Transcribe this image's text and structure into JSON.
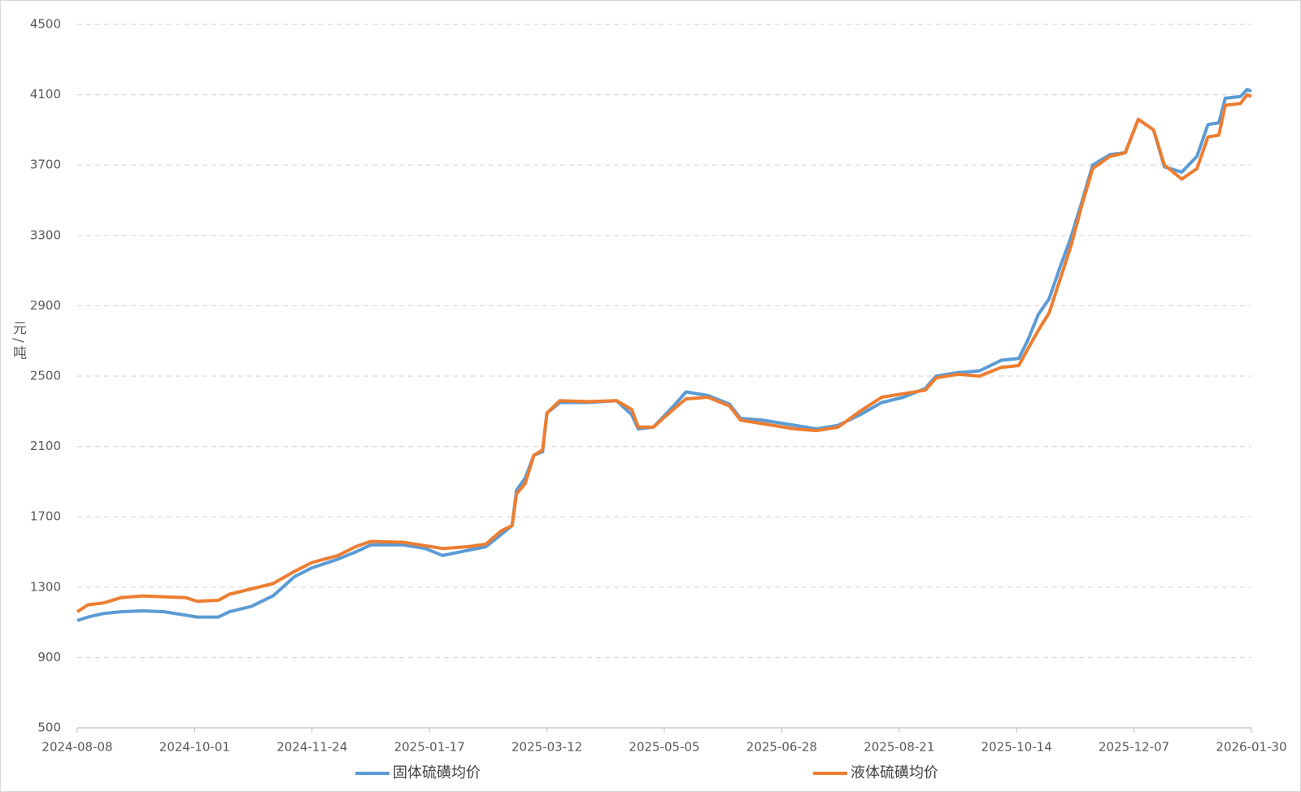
{
  "chart_data": {
    "type": "line",
    "y_label": "元/吨",
    "x": [
      "2024-08-08",
      "2024-08-13",
      "2024-08-20",
      "2024-08-28",
      "2024-09-07",
      "2024-09-17",
      "2024-09-27",
      "2024-10-02",
      "2024-10-12",
      "2024-10-17",
      "2024-10-27",
      "2024-11-06",
      "2024-11-16",
      "2024-11-24",
      "2024-12-06",
      "2024-12-14",
      "2024-12-21",
      "2025-01-05",
      "2025-01-15",
      "2025-01-23",
      "2025-02-04",
      "2025-02-12",
      "2025-02-19",
      "2025-02-24",
      "2025-02-26",
      "2025-03-02",
      "2025-03-06",
      "2025-03-10",
      "2025-03-12",
      "2025-03-18",
      "2025-03-31",
      "2025-04-13",
      "2025-04-20",
      "2025-04-23",
      "2025-04-30",
      "2025-05-10",
      "2025-05-15",
      "2025-05-25",
      "2025-06-04",
      "2025-06-09",
      "2025-06-19",
      "2025-07-04",
      "2025-07-14",
      "2025-07-24",
      "2025-08-03",
      "2025-08-13",
      "2025-08-23",
      "2025-09-02",
      "2025-09-07",
      "2025-09-17",
      "2025-09-27",
      "2025-10-07",
      "2025-10-15",
      "2025-10-19",
      "2025-10-24",
      "2025-10-29",
      "2025-11-03",
      "2025-11-08",
      "2025-11-13",
      "2025-11-18",
      "2025-11-26",
      "2025-12-03",
      "2025-12-09",
      "2025-12-16",
      "2025-12-21",
      "2025-12-29",
      "2026-01-05",
      "2026-01-10",
      "2026-01-15",
      "2026-01-18",
      "2026-01-25",
      "2026-01-28",
      "2026-01-30"
    ],
    "series": [
      {
        "name": "固体硫磺均价",
        "color": "#5b9bd5",
        "values": [
          1110,
          1130,
          1150,
          1160,
          1165,
          1160,
          1140,
          1130,
          1130,
          1160,
          1190,
          1250,
          1360,
          1410,
          1460,
          1500,
          1540,
          1540,
          1520,
          1480,
          1510,
          1530,
          1600,
          1650,
          1850,
          1920,
          2050,
          2070,
          2290,
          2350,
          2350,
          2360,
          2280,
          2200,
          2210,
          2340,
          2410,
          2390,
          2340,
          2260,
          2250,
          2220,
          2200,
          2220,
          2280,
          2350,
          2380,
          2430,
          2500,
          2520,
          2530,
          2590,
          2600,
          2700,
          2850,
          2940,
          3120,
          3290,
          3490,
          3700,
          3760,
          3770,
          3960,
          3900,
          3690,
          3660,
          3750,
          3930,
          3940,
          4080,
          4090,
          4130,
          4120
        ]
      },
      {
        "name": "液体硫磺均价",
        "color": "#ed7d31",
        "values": [
          1160,
          1200,
          1210,
          1240,
          1250,
          1245,
          1240,
          1220,
          1225,
          1260,
          1290,
          1320,
          1390,
          1440,
          1480,
          1530,
          1560,
          1555,
          1535,
          1520,
          1530,
          1545,
          1620,
          1650,
          1830,
          1890,
          2050,
          2080,
          2290,
          2360,
          2355,
          2360,
          2310,
          2210,
          2210,
          2320,
          2370,
          2380,
          2330,
          2250,
          2230,
          2200,
          2190,
          2210,
          2300,
          2380,
          2400,
          2420,
          2490,
          2510,
          2500,
          2550,
          2560,
          2650,
          2760,
          2860,
          3050,
          3240,
          3470,
          3680,
          3750,
          3770,
          3960,
          3900,
          3700,
          3620,
          3680,
          3860,
          3870,
          4040,
          4050,
          4100,
          4090
        ]
      }
    ],
    "xlim": [
      "2024-08-08",
      "2026-01-30"
    ],
    "xticks": [
      "2024-08-08",
      "2024-10-01",
      "2024-11-24",
      "2025-01-17",
      "2025-03-12",
      "2025-05-05",
      "2025-06-28",
      "2025-08-21",
      "2025-10-14",
      "2025-12-07",
      "2026-01-30"
    ],
    "ylim": [
      500,
      4500
    ],
    "yticks": [
      500,
      900,
      1300,
      1700,
      2100,
      2500,
      2900,
      3300,
      3700,
      4100,
      4500
    ],
    "grid": true
  }
}
